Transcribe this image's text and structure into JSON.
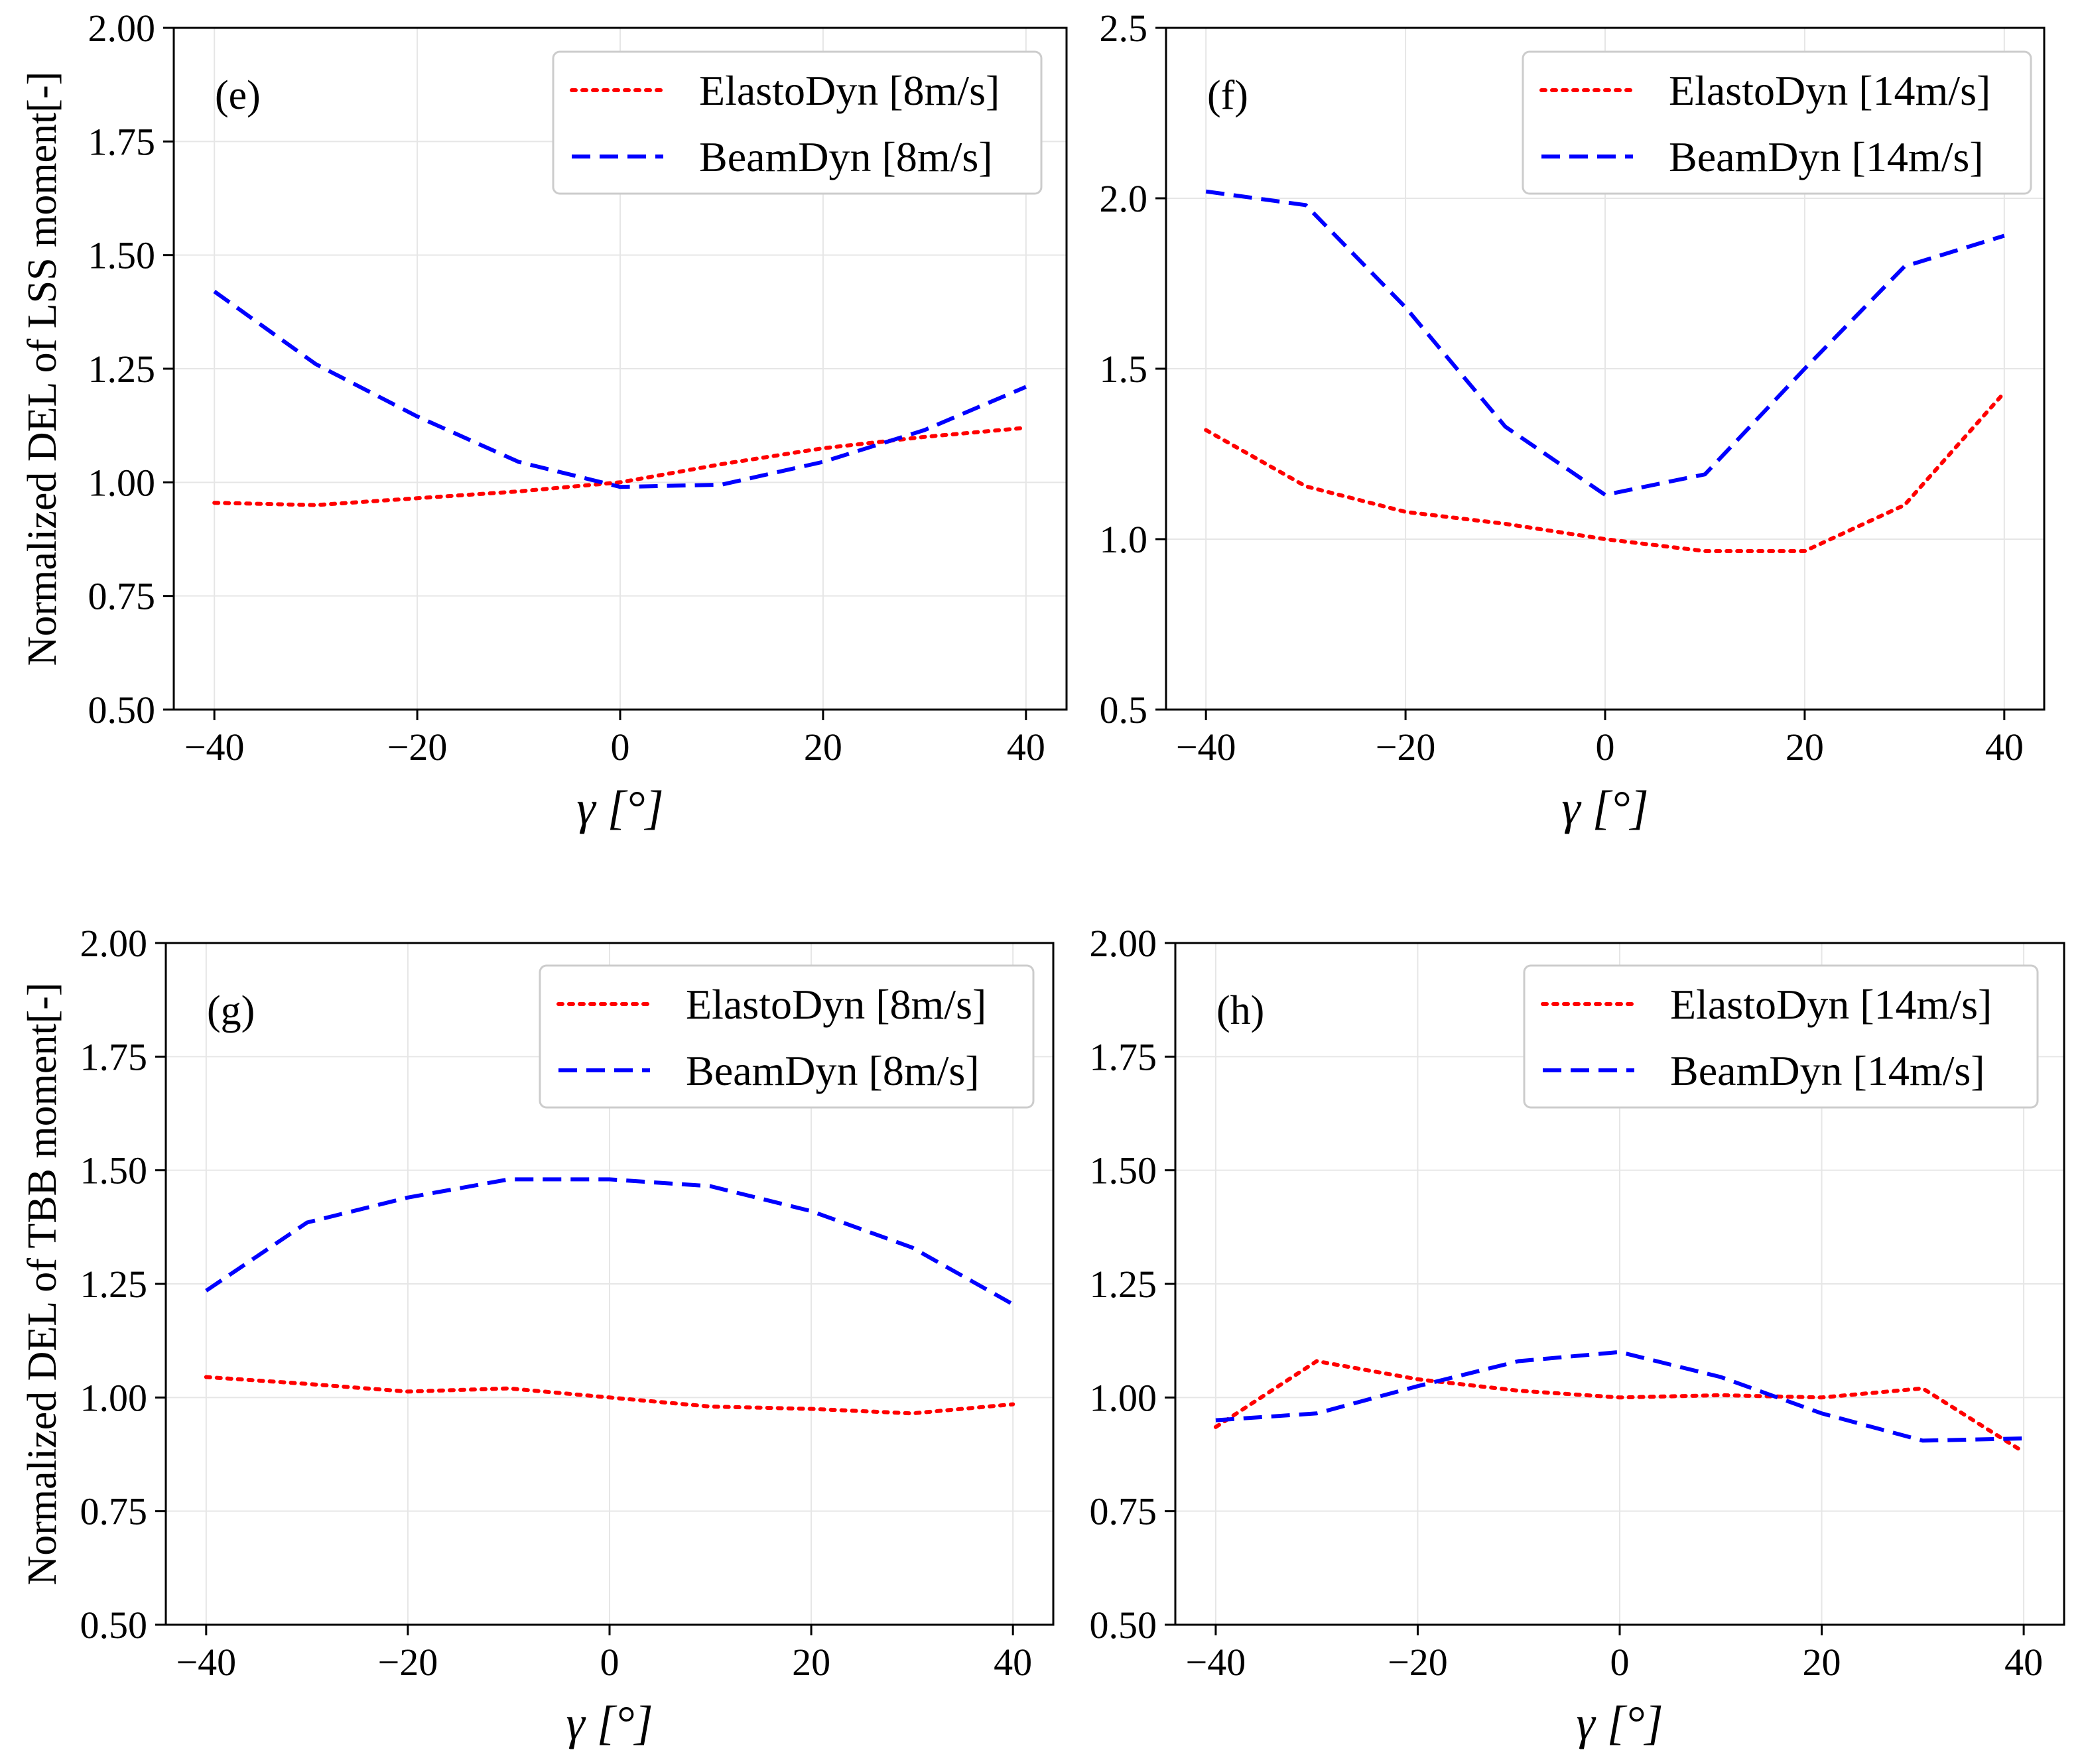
{
  "colors": {
    "elastodyn": "#ff0000",
    "beamdyn": "#0000ff",
    "axis": "#000000",
    "grid": "#e6e6e6"
  },
  "chart_data": [
    {
      "type": "line",
      "panel_label": "(e)",
      "xlabel": "γ [°]",
      "ylabel": "Normalized DEL of LSS moment[-]",
      "xlim": [
        -44,
        44
      ],
      "ylim": [
        0.5,
        2.0
      ],
      "xticks": [
        -40,
        -20,
        0,
        20,
        40
      ],
      "xtick_labels": [
        "−40",
        "−20",
        "0",
        "20",
        "40"
      ],
      "yticks": [
        0.5,
        0.75,
        1.0,
        1.25,
        1.5,
        1.75,
        2.0
      ],
      "ytick_labels": [
        "0.50",
        "0.75",
        "1.00",
        "1.25",
        "1.50",
        "1.75",
        "2.00"
      ],
      "grid": true,
      "legend_position": "top-right",
      "x": [
        -40,
        -30,
        -20,
        -10,
        0,
        10,
        20,
        30,
        40
      ],
      "series": [
        {
          "name": "ElastoDyn [8m/s]",
          "style": "dotted",
          "values": [
            0.955,
            0.95,
            0.965,
            0.98,
            1.0,
            1.04,
            1.075,
            1.1,
            1.12
          ]
        },
        {
          "name": "BeamDyn [8m/s]",
          "style": "dashed",
          "values": [
            1.42,
            1.26,
            1.145,
            1.045,
            0.99,
            0.995,
            1.045,
            1.115,
            1.21
          ]
        }
      ]
    },
    {
      "type": "line",
      "panel_label": "(f)",
      "xlabel": "γ [°]",
      "ylabel": "",
      "xlim": [
        -44,
        44
      ],
      "ylim": [
        0.5,
        2.5
      ],
      "xticks": [
        -40,
        -20,
        0,
        20,
        40
      ],
      "xtick_labels": [
        "−40",
        "−20",
        "0",
        "20",
        "40"
      ],
      "yticks": [
        0.5,
        1.0,
        1.5,
        2.0,
        2.5
      ],
      "ytick_labels": [
        "0.5",
        "1.0",
        "1.5",
        "2.0",
        "2.5"
      ],
      "grid": true,
      "legend_position": "top-right",
      "x": [
        -40,
        -30,
        -20,
        -10,
        0,
        10,
        20,
        30,
        40
      ],
      "series": [
        {
          "name": "ElastoDyn [14m/s]",
          "style": "dotted",
          "values": [
            1.32,
            1.155,
            1.08,
            1.045,
            1.0,
            0.965,
            0.965,
            1.1,
            1.43
          ]
        },
        {
          "name": "BeamDyn [14m/s]",
          "style": "dashed",
          "values": [
            2.02,
            1.98,
            1.68,
            1.33,
            1.13,
            1.19,
            1.5,
            1.8,
            1.89
          ]
        }
      ]
    },
    {
      "type": "line",
      "panel_label": "(g)",
      "xlabel": "γ [°]",
      "ylabel": "Normalized DEL of TBB moment[-]",
      "xlim": [
        -44,
        44
      ],
      "ylim": [
        0.5,
        2.0
      ],
      "xticks": [
        -40,
        -20,
        0,
        20,
        40
      ],
      "xtick_labels": [
        "−40",
        "−20",
        "0",
        "20",
        "40"
      ],
      "yticks": [
        0.5,
        0.75,
        1.0,
        1.25,
        1.5,
        1.75,
        2.0
      ],
      "ytick_labels": [
        "0.50",
        "0.75",
        "1.00",
        "1.25",
        "1.50",
        "1.75",
        "2.00"
      ],
      "grid": true,
      "legend_position": "top-right",
      "x": [
        -40,
        -30,
        -20,
        -10,
        0,
        10,
        20,
        30,
        40
      ],
      "series": [
        {
          "name": "ElastoDyn [8m/s]",
          "style": "dotted",
          "values": [
            1.045,
            1.03,
            1.013,
            1.02,
            1.0,
            0.98,
            0.975,
            0.965,
            0.985
          ]
        },
        {
          "name": "BeamDyn [8m/s]",
          "style": "dashed",
          "values": [
            1.235,
            1.385,
            1.44,
            1.48,
            1.48,
            1.465,
            1.41,
            1.33,
            1.205
          ]
        }
      ]
    },
    {
      "type": "line",
      "panel_label": "(h)",
      "xlabel": "γ [°]",
      "ylabel": "",
      "xlim": [
        -44,
        44
      ],
      "ylim": [
        0.5,
        2.0
      ],
      "xticks": [
        -40,
        -20,
        0,
        20,
        40
      ],
      "xtick_labels": [
        "−40",
        "−20",
        "0",
        "20",
        "40"
      ],
      "yticks": [
        0.5,
        0.75,
        1.0,
        1.25,
        1.5,
        1.75,
        2.0
      ],
      "ytick_labels": [
        "0.50",
        "0.75",
        "1.00",
        "1.25",
        "1.50",
        "1.75",
        "2.00"
      ],
      "grid": true,
      "legend_position": "top-right",
      "x": [
        -40,
        -30,
        -20,
        -10,
        0,
        10,
        20,
        30,
        40
      ],
      "series": [
        {
          "name": "ElastoDyn [14m/s]",
          "style": "dotted",
          "values": [
            0.935,
            1.08,
            1.04,
            1.015,
            1.0,
            1.005,
            1.0,
            1.02,
            0.88
          ]
        },
        {
          "name": "BeamDyn [14m/s]",
          "style": "dashed",
          "values": [
            0.95,
            0.965,
            1.025,
            1.08,
            1.1,
            1.045,
            0.965,
            0.905,
            0.91
          ]
        }
      ]
    }
  ]
}
